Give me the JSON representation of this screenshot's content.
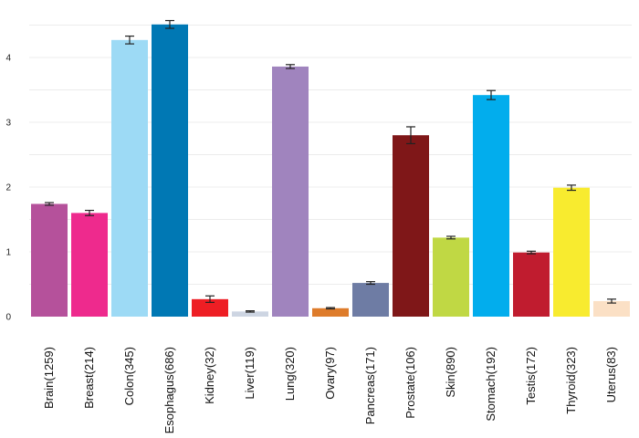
{
  "chart_data": {
    "type": "bar",
    "categories": [
      "Brain(1259)",
      "Breast(214)",
      "Colon(345)",
      "Esophagus(686)",
      "Kidney(32)",
      "Liver(119)",
      "Lung(320)",
      "Ovary(97)",
      "Pancreas(171)",
      "Prostate(106)",
      "Skin(890)",
      "Stomach(192)",
      "Testis(172)",
      "Thyroid(323)",
      "Uterus(83)"
    ],
    "values": [
      1.74,
      1.6,
      4.27,
      4.51,
      0.27,
      0.08,
      3.86,
      0.13,
      0.52,
      2.8,
      1.22,
      3.42,
      0.99,
      1.99,
      0.24
    ],
    "errors": [
      0.02,
      0.04,
      0.06,
      0.06,
      0.05,
      0.01,
      0.03,
      0.01,
      0.02,
      0.13,
      0.02,
      0.07,
      0.02,
      0.04,
      0.03
    ],
    "colors": [
      "#b5519b",
      "#ee2a8d",
      "#9ddaf5",
      "#0078b4",
      "#ee1e24",
      "#cdd5e2",
      "#a084be",
      "#de7c2b",
      "#6e7ca4",
      "#7f1718",
      "#c0d844",
      "#02aded",
      "#c01c2f",
      "#f8eb2f",
      "#fbe0c5"
    ],
    "ylim": [
      0,
      4.6
    ],
    "yticks": [
      "0",
      "1",
      "2",
      "3",
      "4"
    ],
    "grid": true,
    "xlabel": "",
    "ylabel": "",
    "title": ""
  }
}
